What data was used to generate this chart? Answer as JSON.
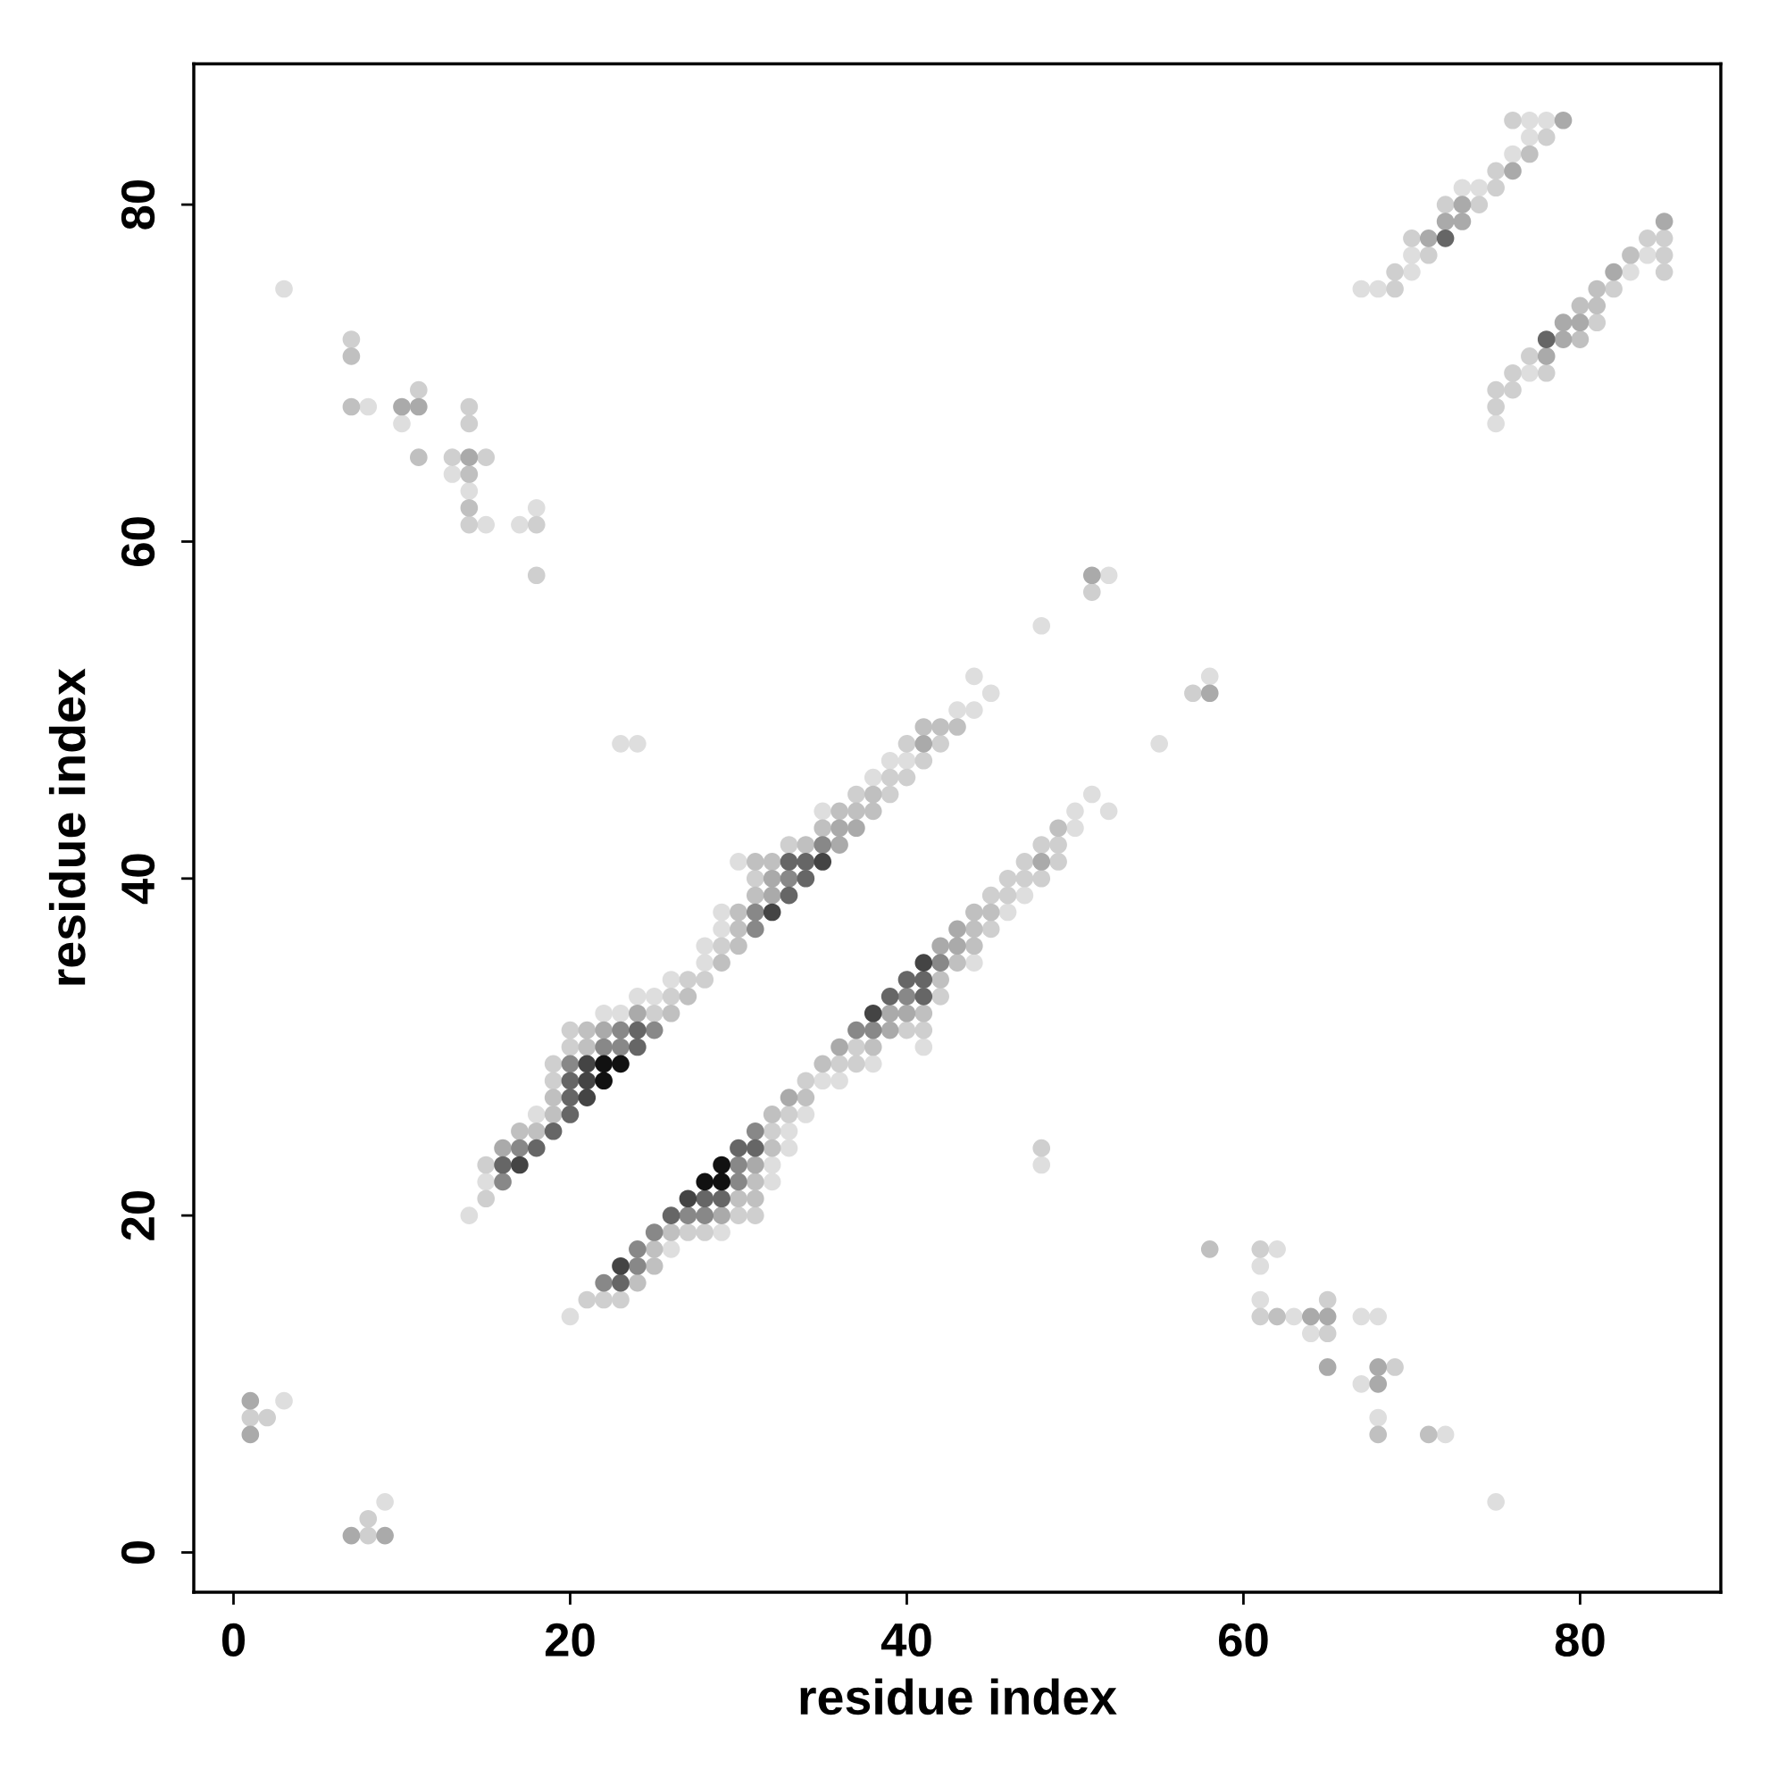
{
  "chart_data": {
    "type": "scatter",
    "xlabel": "residue index",
    "ylabel": "residue index",
    "xlim": [
      -2.36,
      88.36
    ],
    "ylim": [
      -2.36,
      88.36
    ],
    "xticks": [
      0,
      20,
      40,
      60,
      80
    ],
    "yticks": [
      0,
      20,
      40,
      60,
      80
    ],
    "marker": "circle",
    "series": [
      {
        "color": "#dedede",
        "x": [
          3,
          9,
          3,
          8,
          10,
          13,
          14,
          15,
          17,
          18,
          23,
          24,
          48,
          52,
          55,
          58,
          48,
          62,
          61,
          61,
          63,
          67,
          68,
          64,
          67,
          68,
          72,
          75,
          77,
          78,
          77,
          76,
          73,
          74,
          70,
          70,
          67,
          68,
          84,
          83,
          77,
          75,
          44,
          45,
          43,
          44,
          39,
          40,
          38,
          35,
          30,
          29,
          29,
          28,
          28,
          26,
          24,
          25,
          22,
          23,
          18,
          15,
          14,
          51,
          50,
          52,
          50,
          47,
          46,
          44,
          41,
          38,
          35,
          36,
          34,
          33,
          33,
          32,
          32,
          29,
          26,
          20
        ],
        "values": [
          9,
          3,
          75,
          68,
          67,
          64,
          63,
          61,
          61,
          62,
          48,
          48,
          55,
          58,
          48,
          52,
          23,
          18,
          17,
          15,
          14,
          14,
          14,
          13,
          10,
          8,
          7,
          3,
          85,
          85,
          84,
          83,
          81,
          81,
          77,
          76,
          75,
          75,
          77,
          76,
          70,
          67,
          52,
          51,
          50,
          50,
          47,
          47,
          46,
          44,
          41,
          38,
          37,
          36,
          35,
          34,
          33,
          33,
          32,
          32,
          26,
          22,
          20,
          45,
          44,
          44,
          43,
          39,
          38,
          35,
          30,
          29,
          28,
          28,
          26,
          25,
          24,
          23,
          22,
          19,
          18,
          14
        ]
      },
      {
        "color": "#cfcfcf",
        "x": [
          1,
          2,
          8,
          8,
          7,
          11,
          14,
          14,
          13,
          15,
          14,
          18,
          18,
          51,
          57,
          48,
          61,
          65,
          61,
          65,
          69,
          76,
          78,
          75,
          75,
          72,
          74,
          70,
          71,
          69,
          69,
          84,
          85,
          85,
          85,
          82,
          81,
          77,
          76,
          78,
          75,
          76,
          75,
          40,
          42,
          41,
          39,
          40,
          37,
          39,
          33,
          31,
          29,
          27,
          28,
          26,
          25,
          20,
          20,
          19,
          19,
          15,
          15,
          48,
          49,
          47,
          49,
          46,
          47,
          48,
          45,
          46,
          45,
          42,
          40,
          41,
          37,
          36,
          37,
          34,
          33,
          32,
          30,
          31,
          27,
          28,
          21,
          22,
          23
        ],
        "values": [
          8,
          8,
          2,
          1,
          72,
          69,
          68,
          67,
          65,
          65,
          61,
          61,
          58,
          57,
          51,
          24,
          18,
          15,
          14,
          13,
          11,
          85,
          84,
          82,
          81,
          80,
          80,
          78,
          77,
          76,
          75,
          78,
          78,
          77,
          76,
          75,
          73,
          71,
          70,
          70,
          69,
          69,
          68,
          48,
          48,
          47,
          46,
          46,
          45,
          45,
          42,
          40,
          36,
          34,
          34,
          33,
          32,
          31,
          30,
          29,
          28,
          23,
          21,
          42,
          42,
          41,
          41,
          40,
          40,
          40,
          39,
          39,
          37,
          33,
          31,
          31,
          30,
          29,
          29,
          28,
          26,
          25,
          20,
          20,
          19,
          19,
          15,
          15,
          15
        ]
      },
      {
        "color": "#c0c0c0",
        "x": [
          7,
          7,
          11,
          14,
          14,
          58,
          62,
          68,
          71,
          77,
          83,
          81,
          80,
          81,
          80,
          41,
          42,
          43,
          38,
          36,
          37,
          38,
          35,
          34,
          31,
          32,
          31,
          30,
          30,
          30,
          29,
          27,
          26,
          21,
          21,
          19,
          19,
          17,
          18,
          49,
          44,
          45,
          44,
          44,
          43,
          42,
          41,
          38,
          35,
          34,
          32,
          32,
          31,
          30,
          31,
          26,
          25,
          25,
          24
        ],
        "values": [
          71,
          68,
          65,
          64,
          62,
          18,
          14,
          7,
          7,
          83,
          77,
          75,
          74,
          74,
          72,
          49,
          49,
          49,
          45,
          44,
          44,
          44,
          43,
          42,
          41,
          41,
          39,
          38,
          37,
          36,
          35,
          33,
          32,
          31,
          30,
          27,
          26,
          25,
          25,
          43,
          38,
          38,
          37,
          36,
          35,
          34,
          32,
          30,
          29,
          27,
          26,
          24,
          22,
          21,
          21,
          19,
          18,
          17,
          16
        ]
      },
      {
        "color": "#aaaaaa",
        "x": [
          1,
          1,
          7,
          9,
          10,
          11,
          14,
          51,
          58,
          64,
          65,
          65,
          68,
          68,
          79,
          76,
          73,
          72,
          73,
          71,
          85,
          82,
          79,
          80,
          79,
          78,
          41,
          36,
          37,
          36,
          32,
          32,
          24,
          22,
          16,
          48,
          43,
          42,
          43,
          39,
          40,
          39,
          36,
          33,
          31,
          29
        ],
        "values": [
          9,
          7,
          1,
          1,
          68,
          68,
          65,
          58,
          51,
          14,
          14,
          11,
          11,
          10,
          85,
          82,
          80,
          79,
          79,
          78,
          79,
          76,
          73,
          73,
          72,
          71,
          48,
          43,
          43,
          42,
          40,
          39,
          32,
          31,
          24,
          41,
          37,
          36,
          36,
          32,
          32,
          31,
          30,
          27,
          23,
          20
        ]
      },
      {
        "color": "#888888",
        "x": [
          35,
          33,
          31,
          31,
          23,
          25,
          22,
          23,
          20,
          17,
          16,
          42,
          40,
          37,
          38,
          31,
          30,
          30,
          27,
          28,
          25,
          24,
          24,
          22
        ],
        "values": [
          42,
          40,
          38,
          37,
          31,
          31,
          30,
          30,
          29,
          24,
          22,
          35,
          33,
          31,
          31,
          25,
          23,
          22,
          20,
          20,
          19,
          18,
          17,
          16
        ]
      },
      {
        "color": "#666666",
        "x": [
          72,
          78,
          33,
          34,
          34,
          33,
          24,
          24,
          20,
          20,
          20,
          19,
          18,
          16,
          40,
          41,
          39,
          41,
          30,
          31,
          28,
          29,
          26,
          23
        ],
        "values": [
          78,
          72,
          41,
          41,
          40,
          39,
          31,
          30,
          28,
          27,
          26,
          25,
          24,
          23,
          34,
          34,
          33,
          33,
          24,
          24,
          21,
          21,
          20,
          16
        ]
      },
      {
        "color": "#444444",
        "x": [
          35,
          32,
          21,
          21,
          21,
          17,
          41,
          38,
          27,
          23
        ],
        "values": [
          41,
          38,
          29,
          28,
          27,
          23,
          35,
          32,
          21,
          17
        ]
      },
      {
        "color": "#111111",
        "x": [
          22,
          23,
          22,
          29,
          28,
          29
        ],
        "values": [
          29,
          29,
          28,
          23,
          22,
          22
        ]
      }
    ]
  }
}
